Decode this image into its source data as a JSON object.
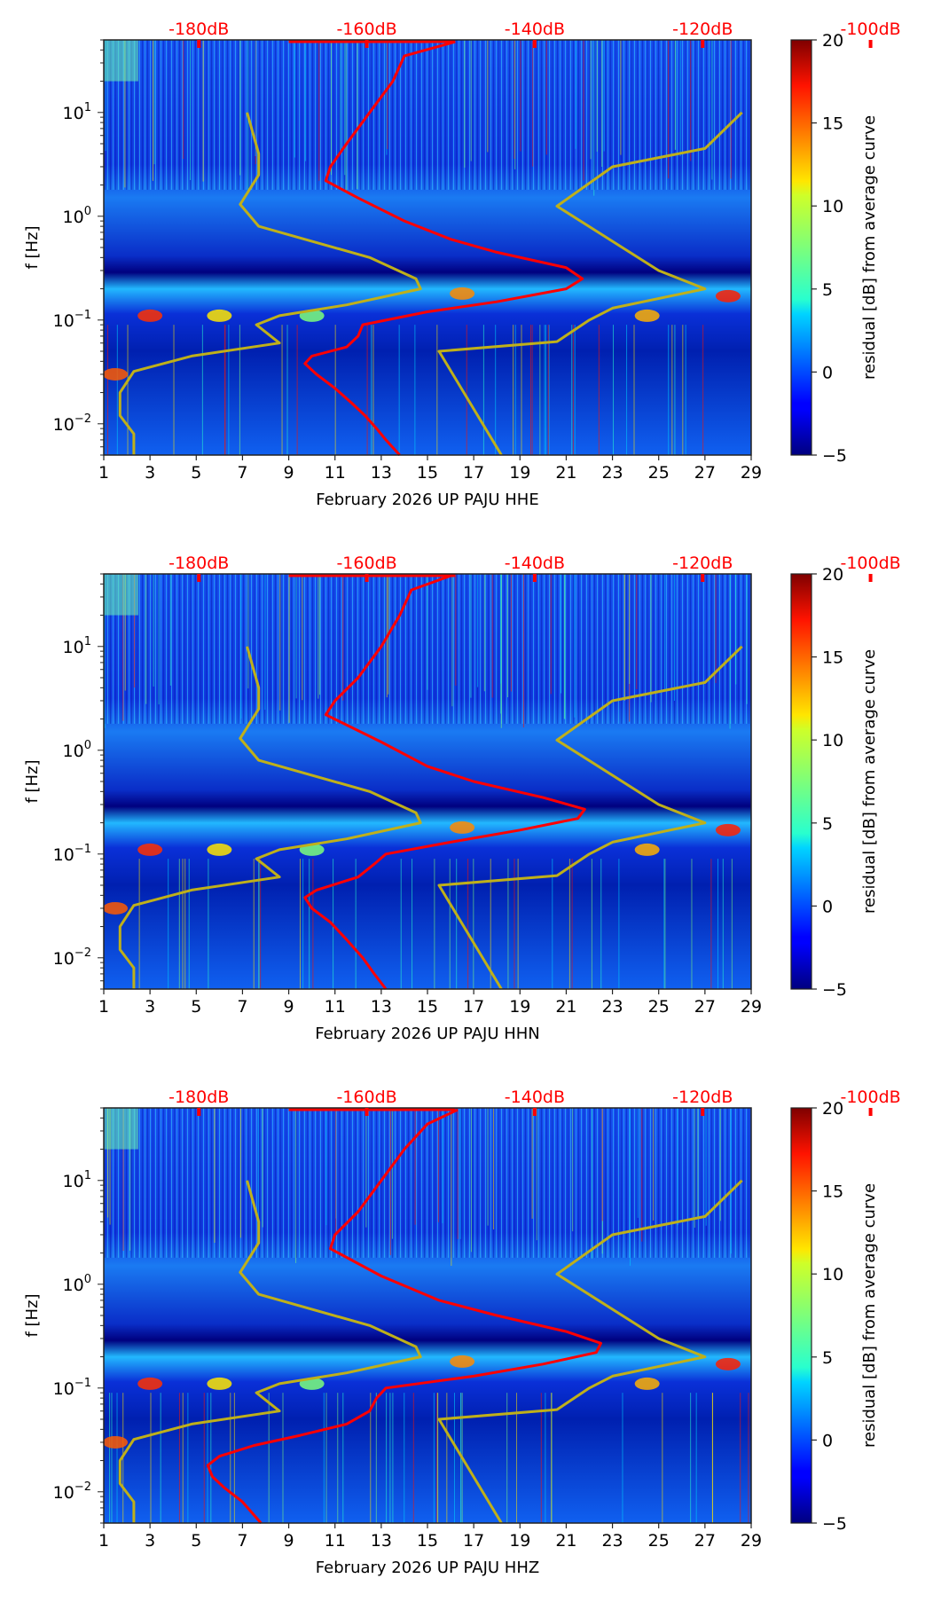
{
  "chart_data": {
    "type": "heatmap",
    "colormap": "jet",
    "colorbar": {
      "label": "residual [dB] from average curve",
      "range": [
        -5,
        20
      ],
      "ticks": [
        -5,
        0,
        5,
        10,
        15,
        20
      ],
      "tick_labels": [
        "−5",
        "0",
        "5",
        "10",
        "15",
        "20"
      ]
    },
    "x": {
      "range": [
        1,
        29
      ],
      "ticks": [
        1,
        3,
        5,
        7,
        9,
        11,
        13,
        15,
        17,
        19,
        21,
        23,
        25,
        27,
        29
      ],
      "tick_labels": [
        "1",
        "3",
        "5",
        "7",
        "9",
        "11",
        "13",
        "15",
        "17",
        "19",
        "21",
        "23",
        "25",
        "27",
        "29"
      ]
    },
    "y": {
      "label": "f [Hz]",
      "scale": "log",
      "range": [
        0.005,
        50
      ],
      "major_ticks": [
        0.01,
        0.1,
        1,
        10
      ],
      "tick_labels": [
        {
          "base": "10",
          "exp": "−2"
        },
        {
          "base": "10",
          "exp": "−1"
        },
        {
          "base": "10",
          "exp": "0"
        },
        {
          "base": "10",
          "exp": "1"
        }
      ]
    },
    "db_axis": {
      "labels": [
        "-180dB",
        "-160dB",
        "-140dB",
        "-120dB",
        "-100dB"
      ],
      "day_positions": [
        5.7,
        14.0,
        22.3,
        30.6,
        38.9
      ]
    },
    "panels": [
      {
        "xlabel": "February 2026 UP PAJU  HHE",
        "red_curve": [
          [
            13.8,
            0.005
          ],
          [
            13.2,
            0.007
          ],
          [
            12.8,
            0.009
          ],
          [
            12.3,
            0.012
          ],
          [
            11.7,
            0.016
          ],
          [
            11,
            0.022
          ],
          [
            10.2,
            0.03
          ],
          [
            9.7,
            0.038
          ],
          [
            10,
            0.045
          ],
          [
            11.5,
            0.055
          ],
          [
            12,
            0.07
          ],
          [
            12.2,
            0.09
          ],
          [
            15,
            0.12
          ],
          [
            18,
            0.15
          ],
          [
            21,
            0.2
          ],
          [
            21.7,
            0.25
          ],
          [
            21,
            0.32
          ],
          [
            18,
            0.45
          ],
          [
            16,
            0.6
          ],
          [
            14,
            0.9
          ],
          [
            12,
            1.5
          ],
          [
            10.6,
            2.2
          ],
          [
            10.8,
            3
          ],
          [
            11.5,
            5
          ],
          [
            12.5,
            10
          ],
          [
            13.5,
            20
          ],
          [
            14,
            35
          ],
          [
            16.2,
            48
          ]
        ],
        "yellow_left": [
          [
            2.3,
            0.005
          ],
          [
            2.3,
            0.008
          ],
          [
            1.7,
            0.012
          ],
          [
            1.7,
            0.02
          ],
          [
            2.3,
            0.032
          ],
          [
            4.8,
            0.045
          ],
          [
            8.6,
            0.06
          ],
          [
            7.6,
            0.09
          ],
          [
            8.6,
            0.11
          ],
          [
            11.5,
            0.14
          ],
          [
            14.7,
            0.2
          ],
          [
            14.5,
            0.25
          ],
          [
            12.5,
            0.4
          ],
          [
            7.7,
            0.8
          ],
          [
            6.9,
            1.3
          ],
          [
            7.7,
            2.5
          ],
          [
            7.7,
            4
          ],
          [
            7.2,
            10
          ]
        ],
        "yellow_right": [
          [
            18.2,
            0.005
          ],
          [
            15.5,
            0.05
          ],
          [
            20.6,
            0.062
          ],
          [
            22,
            0.1
          ],
          [
            23,
            0.13
          ],
          [
            27,
            0.2
          ],
          [
            25,
            0.3
          ],
          [
            20.6,
            1.25
          ],
          [
            23,
            3
          ],
          [
            27,
            4.5
          ],
          [
            28.6,
            10
          ]
        ]
      },
      {
        "xlabel": "February 2026 UP PAJU  HHN",
        "red_curve": [
          [
            13.2,
            0.005
          ],
          [
            12.7,
            0.007
          ],
          [
            12.2,
            0.01
          ],
          [
            11.5,
            0.015
          ],
          [
            10.8,
            0.022
          ],
          [
            10,
            0.03
          ],
          [
            9.7,
            0.038
          ],
          [
            10.2,
            0.045
          ],
          [
            12,
            0.06
          ],
          [
            12.7,
            0.08
          ],
          [
            13.2,
            0.1
          ],
          [
            16,
            0.13
          ],
          [
            19,
            0.17
          ],
          [
            21.5,
            0.22
          ],
          [
            21.8,
            0.27
          ],
          [
            20,
            0.35
          ],
          [
            17,
            0.5
          ],
          [
            15,
            0.7
          ],
          [
            13,
            1.2
          ],
          [
            10.6,
            2.2
          ],
          [
            11,
            3
          ],
          [
            12,
            5
          ],
          [
            13,
            10
          ],
          [
            13.8,
            20
          ],
          [
            14.3,
            35
          ],
          [
            16,
            48
          ]
        ],
        "yellow_left": [
          [
            2.3,
            0.005
          ],
          [
            2.3,
            0.008
          ],
          [
            1.7,
            0.012
          ],
          [
            1.7,
            0.02
          ],
          [
            2.3,
            0.032
          ],
          [
            4.8,
            0.045
          ],
          [
            8.6,
            0.06
          ],
          [
            7.6,
            0.09
          ],
          [
            8.6,
            0.11
          ],
          [
            11.5,
            0.14
          ],
          [
            14.7,
            0.2
          ],
          [
            14.5,
            0.25
          ],
          [
            12.5,
            0.4
          ],
          [
            7.7,
            0.8
          ],
          [
            6.9,
            1.3
          ],
          [
            7.7,
            2.5
          ],
          [
            7.7,
            4
          ],
          [
            7.2,
            10
          ]
        ],
        "yellow_right": [
          [
            18.2,
            0.005
          ],
          [
            15.5,
            0.05
          ],
          [
            20.6,
            0.062
          ],
          [
            22,
            0.1
          ],
          [
            23,
            0.13
          ],
          [
            27,
            0.2
          ],
          [
            25,
            0.3
          ],
          [
            20.6,
            1.25
          ],
          [
            23,
            3
          ],
          [
            27,
            4.5
          ],
          [
            28.6,
            10
          ]
        ]
      },
      {
        "xlabel": "February 2026 UP PAJU  HHZ",
        "red_curve": [
          [
            7.8,
            0.005
          ],
          [
            7,
            0.008
          ],
          [
            6.2,
            0.011
          ],
          [
            5.7,
            0.014
          ],
          [
            5.5,
            0.018
          ],
          [
            6,
            0.022
          ],
          [
            7.5,
            0.028
          ],
          [
            9.5,
            0.035
          ],
          [
            11.5,
            0.045
          ],
          [
            12.5,
            0.06
          ],
          [
            12.8,
            0.08
          ],
          [
            13.2,
            0.1
          ],
          [
            17,
            0.13
          ],
          [
            20,
            0.17
          ],
          [
            22.3,
            0.22
          ],
          [
            22.5,
            0.27
          ],
          [
            21,
            0.35
          ],
          [
            18,
            0.5
          ],
          [
            15.5,
            0.7
          ],
          [
            13,
            1.2
          ],
          [
            10.8,
            2.2
          ],
          [
            11,
            3
          ],
          [
            12,
            5
          ],
          [
            13,
            10
          ],
          [
            14,
            20
          ],
          [
            15,
            35
          ],
          [
            16.3,
            48
          ]
        ],
        "yellow_left": [
          [
            2.3,
            0.005
          ],
          [
            2.3,
            0.008
          ],
          [
            1.7,
            0.012
          ],
          [
            1.7,
            0.02
          ],
          [
            2.3,
            0.032
          ],
          [
            4.8,
            0.045
          ],
          [
            8.6,
            0.06
          ],
          [
            7.6,
            0.09
          ],
          [
            8.6,
            0.11
          ],
          [
            11.5,
            0.14
          ],
          [
            14.7,
            0.2
          ],
          [
            14.5,
            0.25
          ],
          [
            12.5,
            0.4
          ],
          [
            7.7,
            0.8
          ],
          [
            6.9,
            1.3
          ],
          [
            7.7,
            2.5
          ],
          [
            7.7,
            4
          ],
          [
            7.2,
            10
          ]
        ],
        "yellow_right": [
          [
            18.2,
            0.005
          ],
          [
            15.5,
            0.05
          ],
          [
            20.6,
            0.062
          ],
          [
            22,
            0.1
          ],
          [
            23,
            0.13
          ],
          [
            27,
            0.2
          ],
          [
            25,
            0.3
          ],
          [
            20.6,
            1.25
          ],
          [
            23,
            3
          ],
          [
            27,
            4.5
          ],
          [
            28.6,
            10
          ]
        ]
      }
    ],
    "colors": {
      "noise_model_curve": "#ff0000",
      "reference_curves": "#bfb01a",
      "db_labels": "#ff0000"
    }
  }
}
